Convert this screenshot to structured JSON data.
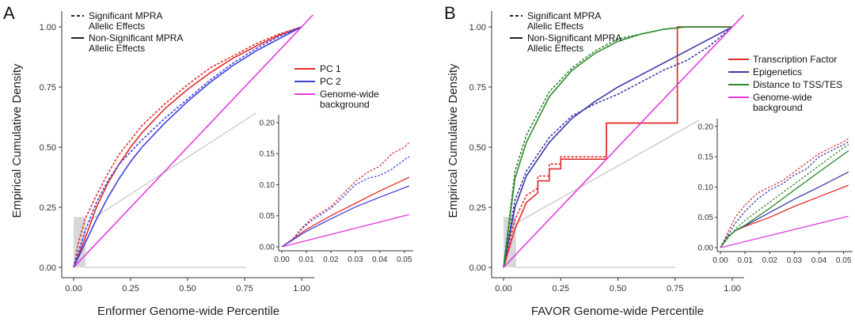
{
  "panels": [
    {
      "label": "A",
      "xlabel": "Enformer Genome-wide Percentile",
      "ylabel": "Empirical Cumulative Density",
      "linestyle_legend": [
        {
          "style": "dashed",
          "line1": "Significant MPRA",
          "line2": "Allelic Effects"
        },
        {
          "style": "solid",
          "line1": "Non-Significant MPRA",
          "line2": "Allelic Effects"
        }
      ],
      "color_legend": [
        {
          "color": "#e32b2b",
          "line1": "PC 1",
          "line2": ""
        },
        {
          "color": "#3f3fe0",
          "line1": "PC 2",
          "line2": ""
        },
        {
          "color": "#e23be2",
          "line1": "Genome-wide",
          "line2": "background"
        }
      ]
    },
    {
      "label": "B",
      "xlabel": "FAVOR Genome-wide Percentile",
      "ylabel": "Empirical Cumulative Density",
      "linestyle_legend": [
        {
          "style": "dashed",
          "line1": "Significant MPRA",
          "line2": "Allelic Effects"
        },
        {
          "style": "solid",
          "line1": "Non-Significant MPRA",
          "line2": "Allelic Effects"
        }
      ],
      "color_legend": [
        {
          "color": "#e32b2b",
          "line1": "Transcription Factor",
          "line2": ""
        },
        {
          "color": "#3a3aa8",
          "line1": "Epigenetics",
          "line2": ""
        },
        {
          "color": "#2e8a2e",
          "line1": "Distance to TSS/TES",
          "line2": ""
        },
        {
          "color": "#e23be2",
          "line1": "Genome-wide",
          "line2": "background"
        }
      ]
    }
  ],
  "chart_data": [
    {
      "type": "line",
      "panel": "A",
      "title": "",
      "xlabel": "Enformer Genome-wide Percentile",
      "ylabel": "Empirical Cumulative Density",
      "xlim": [
        0,
        1
      ],
      "ylim": [
        0,
        1
      ],
      "xticks": [
        "0.00",
        "0.25",
        "0.50",
        "0.75",
        "1.00"
      ],
      "yticks": [
        "0.00",
        "0.25",
        "0.50",
        "0.75",
        "1.00"
      ],
      "zoom_box": {
        "x": [
          0,
          0.053
        ],
        "y": [
          0,
          0.21
        ]
      },
      "series": [
        {
          "name": "PC 1",
          "style": "dashed",
          "color": "#e32b2b",
          "x": [
            0,
            0.02,
            0.05,
            0.1,
            0.15,
            0.2,
            0.25,
            0.3,
            0.4,
            0.5,
            0.6,
            0.7,
            0.8,
            0.9,
            1.0
          ],
          "y": [
            0,
            0.1,
            0.2,
            0.3,
            0.39,
            0.47,
            0.53,
            0.59,
            0.68,
            0.76,
            0.83,
            0.88,
            0.93,
            0.97,
            1.0
          ]
        },
        {
          "name": "PC 1",
          "style": "solid",
          "color": "#e32b2b",
          "x": [
            0,
            0.05,
            0.1,
            0.15,
            0.2,
            0.25,
            0.3,
            0.4,
            0.5,
            0.6,
            0.7,
            0.8,
            0.9,
            1.0
          ],
          "y": [
            0,
            0.12,
            0.25,
            0.35,
            0.43,
            0.5,
            0.56,
            0.66,
            0.74,
            0.81,
            0.87,
            0.92,
            0.965,
            1.0
          ]
        },
        {
          "name": "PC 2",
          "style": "dashed",
          "color": "#3f3fe0",
          "x": [
            0,
            0.05,
            0.1,
            0.15,
            0.2,
            0.25,
            0.3,
            0.4,
            0.5,
            0.6,
            0.7,
            0.8,
            0.9,
            1.0
          ],
          "y": [
            0,
            0.15,
            0.27,
            0.36,
            0.43,
            0.48,
            0.53,
            0.62,
            0.7,
            0.78,
            0.85,
            0.91,
            0.96,
            1.0
          ]
        },
        {
          "name": "PC 2",
          "style": "solid",
          "color": "#3f3fe0",
          "x": [
            0,
            0.05,
            0.1,
            0.15,
            0.2,
            0.25,
            0.3,
            0.4,
            0.5,
            0.6,
            0.7,
            0.8,
            0.9,
            1.0
          ],
          "y": [
            0,
            0.1,
            0.2,
            0.29,
            0.37,
            0.44,
            0.5,
            0.6,
            0.69,
            0.77,
            0.84,
            0.9,
            0.95,
            1.0
          ]
        },
        {
          "name": "Genome-wide background",
          "style": "solid",
          "color": "#e23be2",
          "x": [
            0,
            1.05
          ],
          "y": [
            0,
            1.05
          ]
        }
      ],
      "inset": {
        "xlim": [
          0,
          0.053
        ],
        "ylim": [
          0,
          0.205
        ],
        "xticks": [
          "0.00",
          "0.01",
          "0.02",
          "0.03",
          "0.04",
          "0.05"
        ],
        "yticks": [
          "0.00",
          "0.05",
          "0.10",
          "0.15",
          "0.20"
        ],
        "series": [
          {
            "name": "PC 1",
            "style": "dashed",
            "color": "#e32b2b",
            "x": [
              0,
              0.004,
              0.008,
              0.012,
              0.016,
              0.02,
              0.025,
              0.03,
              0.035,
              0.04,
              0.045,
              0.05,
              0.052
            ],
            "y": [
              0,
              0.01,
              0.03,
              0.045,
              0.055,
              0.065,
              0.085,
              0.105,
              0.12,
              0.13,
              0.15,
              0.16,
              0.168
            ]
          },
          {
            "name": "PC 1",
            "style": "solid",
            "color": "#e32b2b",
            "x": [
              0,
              0.01,
              0.02,
              0.03,
              0.04,
              0.052
            ],
            "y": [
              0,
              0.028,
              0.05,
              0.07,
              0.09,
              0.112
            ]
          },
          {
            "name": "PC 2",
            "style": "dashed",
            "color": "#3f3fe0",
            "x": [
              0,
              0.004,
              0.008,
              0.012,
              0.016,
              0.02,
              0.025,
              0.03,
              0.035,
              0.04,
              0.045,
              0.05,
              0.052
            ],
            "y": [
              0,
              0.01,
              0.028,
              0.042,
              0.052,
              0.062,
              0.08,
              0.1,
              0.11,
              0.115,
              0.125,
              0.14,
              0.145
            ]
          },
          {
            "name": "PC 2",
            "style": "solid",
            "color": "#3f3fe0",
            "x": [
              0,
              0.01,
              0.02,
              0.03,
              0.04,
              0.052
            ],
            "y": [
              0,
              0.025,
              0.045,
              0.064,
              0.08,
              0.098
            ]
          },
          {
            "name": "Genome-wide background",
            "style": "solid",
            "color": "#e23be2",
            "x": [
              0,
              0.052
            ],
            "y": [
              0,
              0.052
            ]
          }
        ]
      }
    },
    {
      "type": "line",
      "panel": "B",
      "title": "",
      "xlabel": "FAVOR Genome-wide Percentile",
      "ylabel": "Empirical Cumulative Density",
      "xlim": [
        0,
        1
      ],
      "ylim": [
        0,
        1
      ],
      "xticks": [
        "0.00",
        "0.25",
        "0.50",
        "0.75",
        "1.00"
      ],
      "yticks": [
        "0.00",
        "0.25",
        "0.50",
        "0.75",
        "1.00"
      ],
      "zoom_box": {
        "x": [
          0,
          0.055
        ],
        "y": [
          0,
          0.21
        ]
      },
      "series": [
        {
          "name": "Transcription Factor",
          "style": "dashed",
          "color": "#e32b2b",
          "x": [
            0,
            0.05,
            0.1,
            0.15,
            0.15,
            0.2,
            0.2,
            0.25,
            0.25,
            0.33,
            0.33,
            0.45,
            0.45,
            0.76,
            0.76,
            1.0
          ],
          "y": [
            0,
            0.2,
            0.3,
            0.33,
            0.38,
            0.38,
            0.43,
            0.43,
            0.46,
            0.46,
            0.46,
            0.46,
            0.6,
            0.6,
            1.0,
            1.0
          ]
        },
        {
          "name": "Transcription Factor",
          "style": "solid",
          "color": "#e32b2b",
          "x": [
            0,
            0.05,
            0.1,
            0.15,
            0.15,
            0.2,
            0.2,
            0.25,
            0.25,
            0.33,
            0.33,
            0.45,
            0.45,
            0.76,
            0.76,
            1.0
          ],
          "y": [
            0,
            0.16,
            0.27,
            0.31,
            0.36,
            0.36,
            0.41,
            0.41,
            0.45,
            0.45,
            0.45,
            0.45,
            0.6,
            0.6,
            1.0,
            1.0
          ]
        },
        {
          "name": "Epigenetics",
          "style": "dashed",
          "color": "#3a3aa8",
          "x": [
            0,
            0.05,
            0.1,
            0.2,
            0.3,
            0.4,
            0.5,
            0.6,
            0.7,
            0.8,
            0.9,
            1.0
          ],
          "y": [
            0,
            0.28,
            0.4,
            0.54,
            0.63,
            0.68,
            0.72,
            0.77,
            0.82,
            0.86,
            0.92,
            1.0
          ]
        },
        {
          "name": "Epigenetics",
          "style": "solid",
          "color": "#3a3aa8",
          "x": [
            0,
            0.05,
            0.1,
            0.2,
            0.3,
            0.4,
            0.5,
            0.6,
            0.7,
            0.8,
            0.9,
            1.0
          ],
          "y": [
            0,
            0.25,
            0.38,
            0.52,
            0.62,
            0.69,
            0.75,
            0.8,
            0.85,
            0.9,
            0.95,
            1.0
          ]
        },
        {
          "name": "Distance to TSS/TES",
          "style": "dashed",
          "color": "#2e8a2e",
          "x": [
            0,
            0.05,
            0.1,
            0.2,
            0.3,
            0.4,
            0.5,
            0.6,
            0.7,
            0.8,
            0.9,
            1.0
          ],
          "y": [
            0,
            0.4,
            0.55,
            0.73,
            0.83,
            0.9,
            0.95,
            0.97,
            0.99,
            1.0,
            1.0,
            1.0
          ]
        },
        {
          "name": "Distance to TSS/TES",
          "style": "solid",
          "color": "#2e8a2e",
          "x": [
            0,
            0.05,
            0.1,
            0.2,
            0.3,
            0.4,
            0.5,
            0.6,
            0.7,
            0.8,
            0.9,
            1.0
          ],
          "y": [
            0,
            0.37,
            0.52,
            0.71,
            0.82,
            0.89,
            0.94,
            0.97,
            0.99,
            1.0,
            1.0,
            1.0
          ]
        },
        {
          "name": "Genome-wide background",
          "style": "solid",
          "color": "#e23be2",
          "x": [
            0,
            1.05
          ],
          "y": [
            0,
            1.05
          ]
        }
      ],
      "inset": {
        "xlim": [
          0,
          0.053
        ],
        "ylim": [
          0,
          0.205
        ],
        "xticks": [
          "0.00",
          "0.01",
          "0.02",
          "0.03",
          "0.04",
          "0.05"
        ],
        "yticks": [
          "0.00",
          "0.05",
          "0.10",
          "0.15",
          "0.20"
        ],
        "series": [
          {
            "name": "Transcription Factor",
            "style": "dashed",
            "color": "#e32b2b",
            "x": [
              0,
              0.003,
              0.006,
              0.01,
              0.015,
              0.02,
              0.025,
              0.03,
              0.035,
              0.04,
              0.045,
              0.05,
              0.052
            ],
            "y": [
              0,
              0.025,
              0.05,
              0.07,
              0.09,
              0.1,
              0.11,
              0.125,
              0.14,
              0.155,
              0.165,
              0.175,
              0.18
            ]
          },
          {
            "name": "Transcription Factor",
            "style": "solid",
            "color": "#e32b2b",
            "x": [
              0,
              0.003,
              0.006,
              0.01,
              0.02,
              0.03,
              0.04,
              0.052
            ],
            "y": [
              0,
              0.018,
              0.028,
              0.035,
              0.05,
              0.068,
              0.084,
              0.103
            ]
          },
          {
            "name": "Epigenetics",
            "style": "dashed",
            "color": "#3a3aa8",
            "x": [
              0,
              0.003,
              0.006,
              0.01,
              0.015,
              0.02,
              0.025,
              0.03,
              0.035,
              0.04,
              0.045,
              0.05,
              0.052
            ],
            "y": [
              0,
              0.02,
              0.04,
              0.06,
              0.08,
              0.095,
              0.105,
              0.12,
              0.13,
              0.15,
              0.16,
              0.17,
              0.175
            ]
          },
          {
            "name": "Epigenetics",
            "style": "solid",
            "color": "#3a3aa8",
            "x": [
              0,
              0.003,
              0.006,
              0.01,
              0.02,
              0.03,
              0.04,
              0.052
            ],
            "y": [
              0,
              0.018,
              0.028,
              0.036,
              0.058,
              0.08,
              0.1,
              0.125
            ]
          },
          {
            "name": "Distance to TSS/TES",
            "style": "dashed",
            "color": "#2e8a2e",
            "x": [
              0,
              0.003,
              0.006,
              0.01,
              0.015,
              0.02,
              0.025,
              0.03,
              0.035,
              0.04,
              0.045,
              0.05,
              0.052
            ],
            "y": [
              0,
              0.015,
              0.03,
              0.045,
              0.06,
              0.075,
              0.09,
              0.105,
              0.12,
              0.135,
              0.15,
              0.165,
              0.17
            ]
          },
          {
            "name": "Distance to TSS/TES",
            "style": "solid",
            "color": "#2e8a2e",
            "x": [
              0,
              0.003,
              0.006,
              0.01,
              0.02,
              0.03,
              0.04,
              0.052
            ],
            "y": [
              0,
              0.018,
              0.028,
              0.037,
              0.065,
              0.095,
              0.125,
              0.16
            ]
          },
          {
            "name": "Genome-wide background",
            "style": "solid",
            "color": "#e23be2",
            "x": [
              0,
              0.052
            ],
            "y": [
              0,
              0.052
            ]
          }
        ]
      }
    }
  ]
}
